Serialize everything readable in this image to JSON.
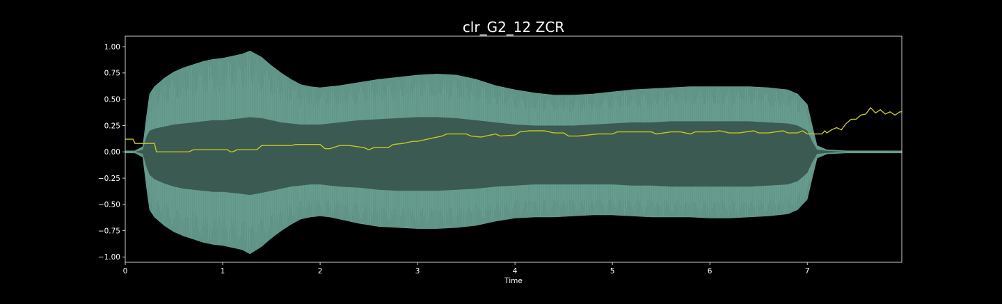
{
  "chart_data": {
    "type": "area",
    "title": "clr_G2_12 ZCR",
    "xlabel": "Time",
    "ylabel": "",
    "xlim": [
      0,
      7.97
    ],
    "ylim": [
      -1.05,
      1.1
    ],
    "x_ticks": [
      0,
      1,
      2,
      3,
      4,
      5,
      6,
      7
    ],
    "y_ticks": [
      1.0,
      0.75,
      0.5,
      0.25,
      0.0,
      -0.25,
      -0.5,
      -0.75,
      -1.0
    ],
    "x_tick_labels": [
      "0",
      "1",
      "2",
      "3",
      "4",
      "5",
      "6",
      "7"
    ],
    "y_tick_labels": [
      "1.00",
      "0.75",
      "0.50",
      "0.25",
      "0.00",
      "−0.25",
      "−0.50",
      "−0.75",
      "−1.00"
    ],
    "grid": false,
    "series": [
      {
        "name": "waveform",
        "kind": "envelope",
        "color": "#5f9487",
        "x": [
          0,
          0.1,
          0.18,
          0.22,
          0.25,
          0.3,
          0.4,
          0.5,
          0.6,
          0.7,
          0.8,
          0.9,
          1.0,
          1.1,
          1.2,
          1.28,
          1.4,
          1.5,
          1.6,
          1.7,
          1.8,
          1.9,
          2.0,
          2.1,
          2.2,
          2.4,
          2.6,
          2.8,
          3.0,
          3.2,
          3.4,
          3.6,
          3.8,
          4.0,
          4.2,
          4.4,
          4.6,
          4.8,
          5.0,
          5.2,
          5.4,
          5.6,
          5.8,
          6.0,
          6.2,
          6.4,
          6.6,
          6.8,
          6.9,
          7.0,
          7.05,
          7.1,
          7.2,
          7.4,
          7.6,
          7.8,
          7.97
        ],
        "upper": [
          0.01,
          0.01,
          0.05,
          0.35,
          0.55,
          0.62,
          0.7,
          0.76,
          0.8,
          0.83,
          0.86,
          0.88,
          0.89,
          0.91,
          0.93,
          0.96,
          0.9,
          0.82,
          0.75,
          0.69,
          0.64,
          0.62,
          0.61,
          0.62,
          0.63,
          0.66,
          0.69,
          0.71,
          0.73,
          0.74,
          0.73,
          0.69,
          0.63,
          0.59,
          0.56,
          0.54,
          0.54,
          0.55,
          0.57,
          0.59,
          0.6,
          0.61,
          0.62,
          0.62,
          0.62,
          0.62,
          0.61,
          0.59,
          0.55,
          0.45,
          0.25,
          0.06,
          0.02,
          0.01,
          0.01,
          0.01,
          0.01
        ],
        "lower": [
          -0.01,
          -0.01,
          -0.05,
          -0.35,
          -0.55,
          -0.62,
          -0.7,
          -0.76,
          -0.8,
          -0.83,
          -0.86,
          -0.88,
          -0.89,
          -0.91,
          -0.93,
          -0.97,
          -0.9,
          -0.82,
          -0.75,
          -0.69,
          -0.64,
          -0.62,
          -0.61,
          -0.62,
          -0.64,
          -0.68,
          -0.71,
          -0.72,
          -0.73,
          -0.73,
          -0.72,
          -0.7,
          -0.66,
          -0.63,
          -0.62,
          -0.62,
          -0.61,
          -0.6,
          -0.6,
          -0.61,
          -0.62,
          -0.62,
          -0.62,
          -0.63,
          -0.63,
          -0.62,
          -0.61,
          -0.59,
          -0.55,
          -0.45,
          -0.25,
          -0.06,
          -0.02,
          -0.01,
          -0.01,
          -0.01,
          -0.01
        ],
        "inner_upper": [
          0.0,
          0.0,
          0.02,
          0.15,
          0.2,
          0.22,
          0.24,
          0.26,
          0.27,
          0.28,
          0.29,
          0.3,
          0.3,
          0.31,
          0.32,
          0.33,
          0.32,
          0.3,
          0.28,
          0.27,
          0.26,
          0.26,
          0.26,
          0.27,
          0.28,
          0.3,
          0.31,
          0.32,
          0.33,
          0.33,
          0.32,
          0.3,
          0.28,
          0.26,
          0.25,
          0.25,
          0.25,
          0.26,
          0.27,
          0.28,
          0.28,
          0.29,
          0.29,
          0.29,
          0.29,
          0.29,
          0.28,
          0.27,
          0.25,
          0.2,
          0.1,
          0.02,
          0.01,
          0.0,
          0.0,
          0.0,
          0.0
        ],
        "inner_lower": [
          0.0,
          0.0,
          -0.02,
          -0.15,
          -0.22,
          -0.26,
          -0.3,
          -0.33,
          -0.35,
          -0.36,
          -0.37,
          -0.38,
          -0.38,
          -0.39,
          -0.4,
          -0.41,
          -0.39,
          -0.37,
          -0.35,
          -0.33,
          -0.32,
          -0.31,
          -0.31,
          -0.32,
          -0.33,
          -0.34,
          -0.36,
          -0.37,
          -0.37,
          -0.37,
          -0.36,
          -0.35,
          -0.33,
          -0.32,
          -0.31,
          -0.31,
          -0.31,
          -0.31,
          -0.31,
          -0.32,
          -0.32,
          -0.33,
          -0.33,
          -0.33,
          -0.33,
          -0.33,
          -0.32,
          -0.31,
          -0.28,
          -0.2,
          -0.1,
          -0.02,
          -0.01,
          0.0,
          0.0,
          0.0,
          0.0
        ]
      },
      {
        "name": "ZCR",
        "kind": "line",
        "color": "#c8c822",
        "x": [
          0,
          0.08,
          0.1,
          0.3,
          0.32,
          0.65,
          0.7,
          1.05,
          1.08,
          1.1,
          1.15,
          1.35,
          1.4,
          1.7,
          1.75,
          2.0,
          2.05,
          2.1,
          2.2,
          2.3,
          2.45,
          2.5,
          2.55,
          2.7,
          2.75,
          2.85,
          2.95,
          3.0,
          3.1,
          3.25,
          3.3,
          3.5,
          3.55,
          3.65,
          3.7,
          3.8,
          3.85,
          4.0,
          4.05,
          4.15,
          4.3,
          4.4,
          4.5,
          4.55,
          4.65,
          4.75,
          4.85,
          5.0,
          5.05,
          5.2,
          5.4,
          5.45,
          5.6,
          5.7,
          5.8,
          5.85,
          5.95,
          6.0,
          6.1,
          6.2,
          6.3,
          6.45,
          6.5,
          6.6,
          6.75,
          6.8,
          6.9,
          6.95,
          7.0,
          7.05,
          7.15,
          7.18,
          7.2,
          7.25,
          7.3,
          7.35,
          7.4,
          7.45,
          7.5,
          7.55,
          7.6,
          7.65,
          7.7,
          7.75,
          7.8,
          7.85,
          7.9,
          7.95,
          7.97
        ],
        "y": [
          0.12,
          0.12,
          0.08,
          0.08,
          0.0,
          0.0,
          0.02,
          0.02,
          0.0,
          0.0,
          0.02,
          0.02,
          0.06,
          0.06,
          0.07,
          0.07,
          0.03,
          0.03,
          0.06,
          0.06,
          0.04,
          0.02,
          0.04,
          0.04,
          0.07,
          0.08,
          0.1,
          0.1,
          0.12,
          0.15,
          0.17,
          0.17,
          0.15,
          0.14,
          0.15,
          0.17,
          0.15,
          0.16,
          0.19,
          0.2,
          0.2,
          0.18,
          0.18,
          0.15,
          0.15,
          0.16,
          0.17,
          0.17,
          0.19,
          0.19,
          0.19,
          0.17,
          0.19,
          0.19,
          0.17,
          0.19,
          0.19,
          0.19,
          0.2,
          0.18,
          0.18,
          0.2,
          0.18,
          0.18,
          0.2,
          0.18,
          0.18,
          0.2,
          0.17,
          0.17,
          0.17,
          0.2,
          0.18,
          0.21,
          0.23,
          0.21,
          0.27,
          0.31,
          0.31,
          0.35,
          0.36,
          0.42,
          0.37,
          0.4,
          0.36,
          0.38,
          0.35,
          0.38,
          0.38
        ]
      }
    ]
  }
}
